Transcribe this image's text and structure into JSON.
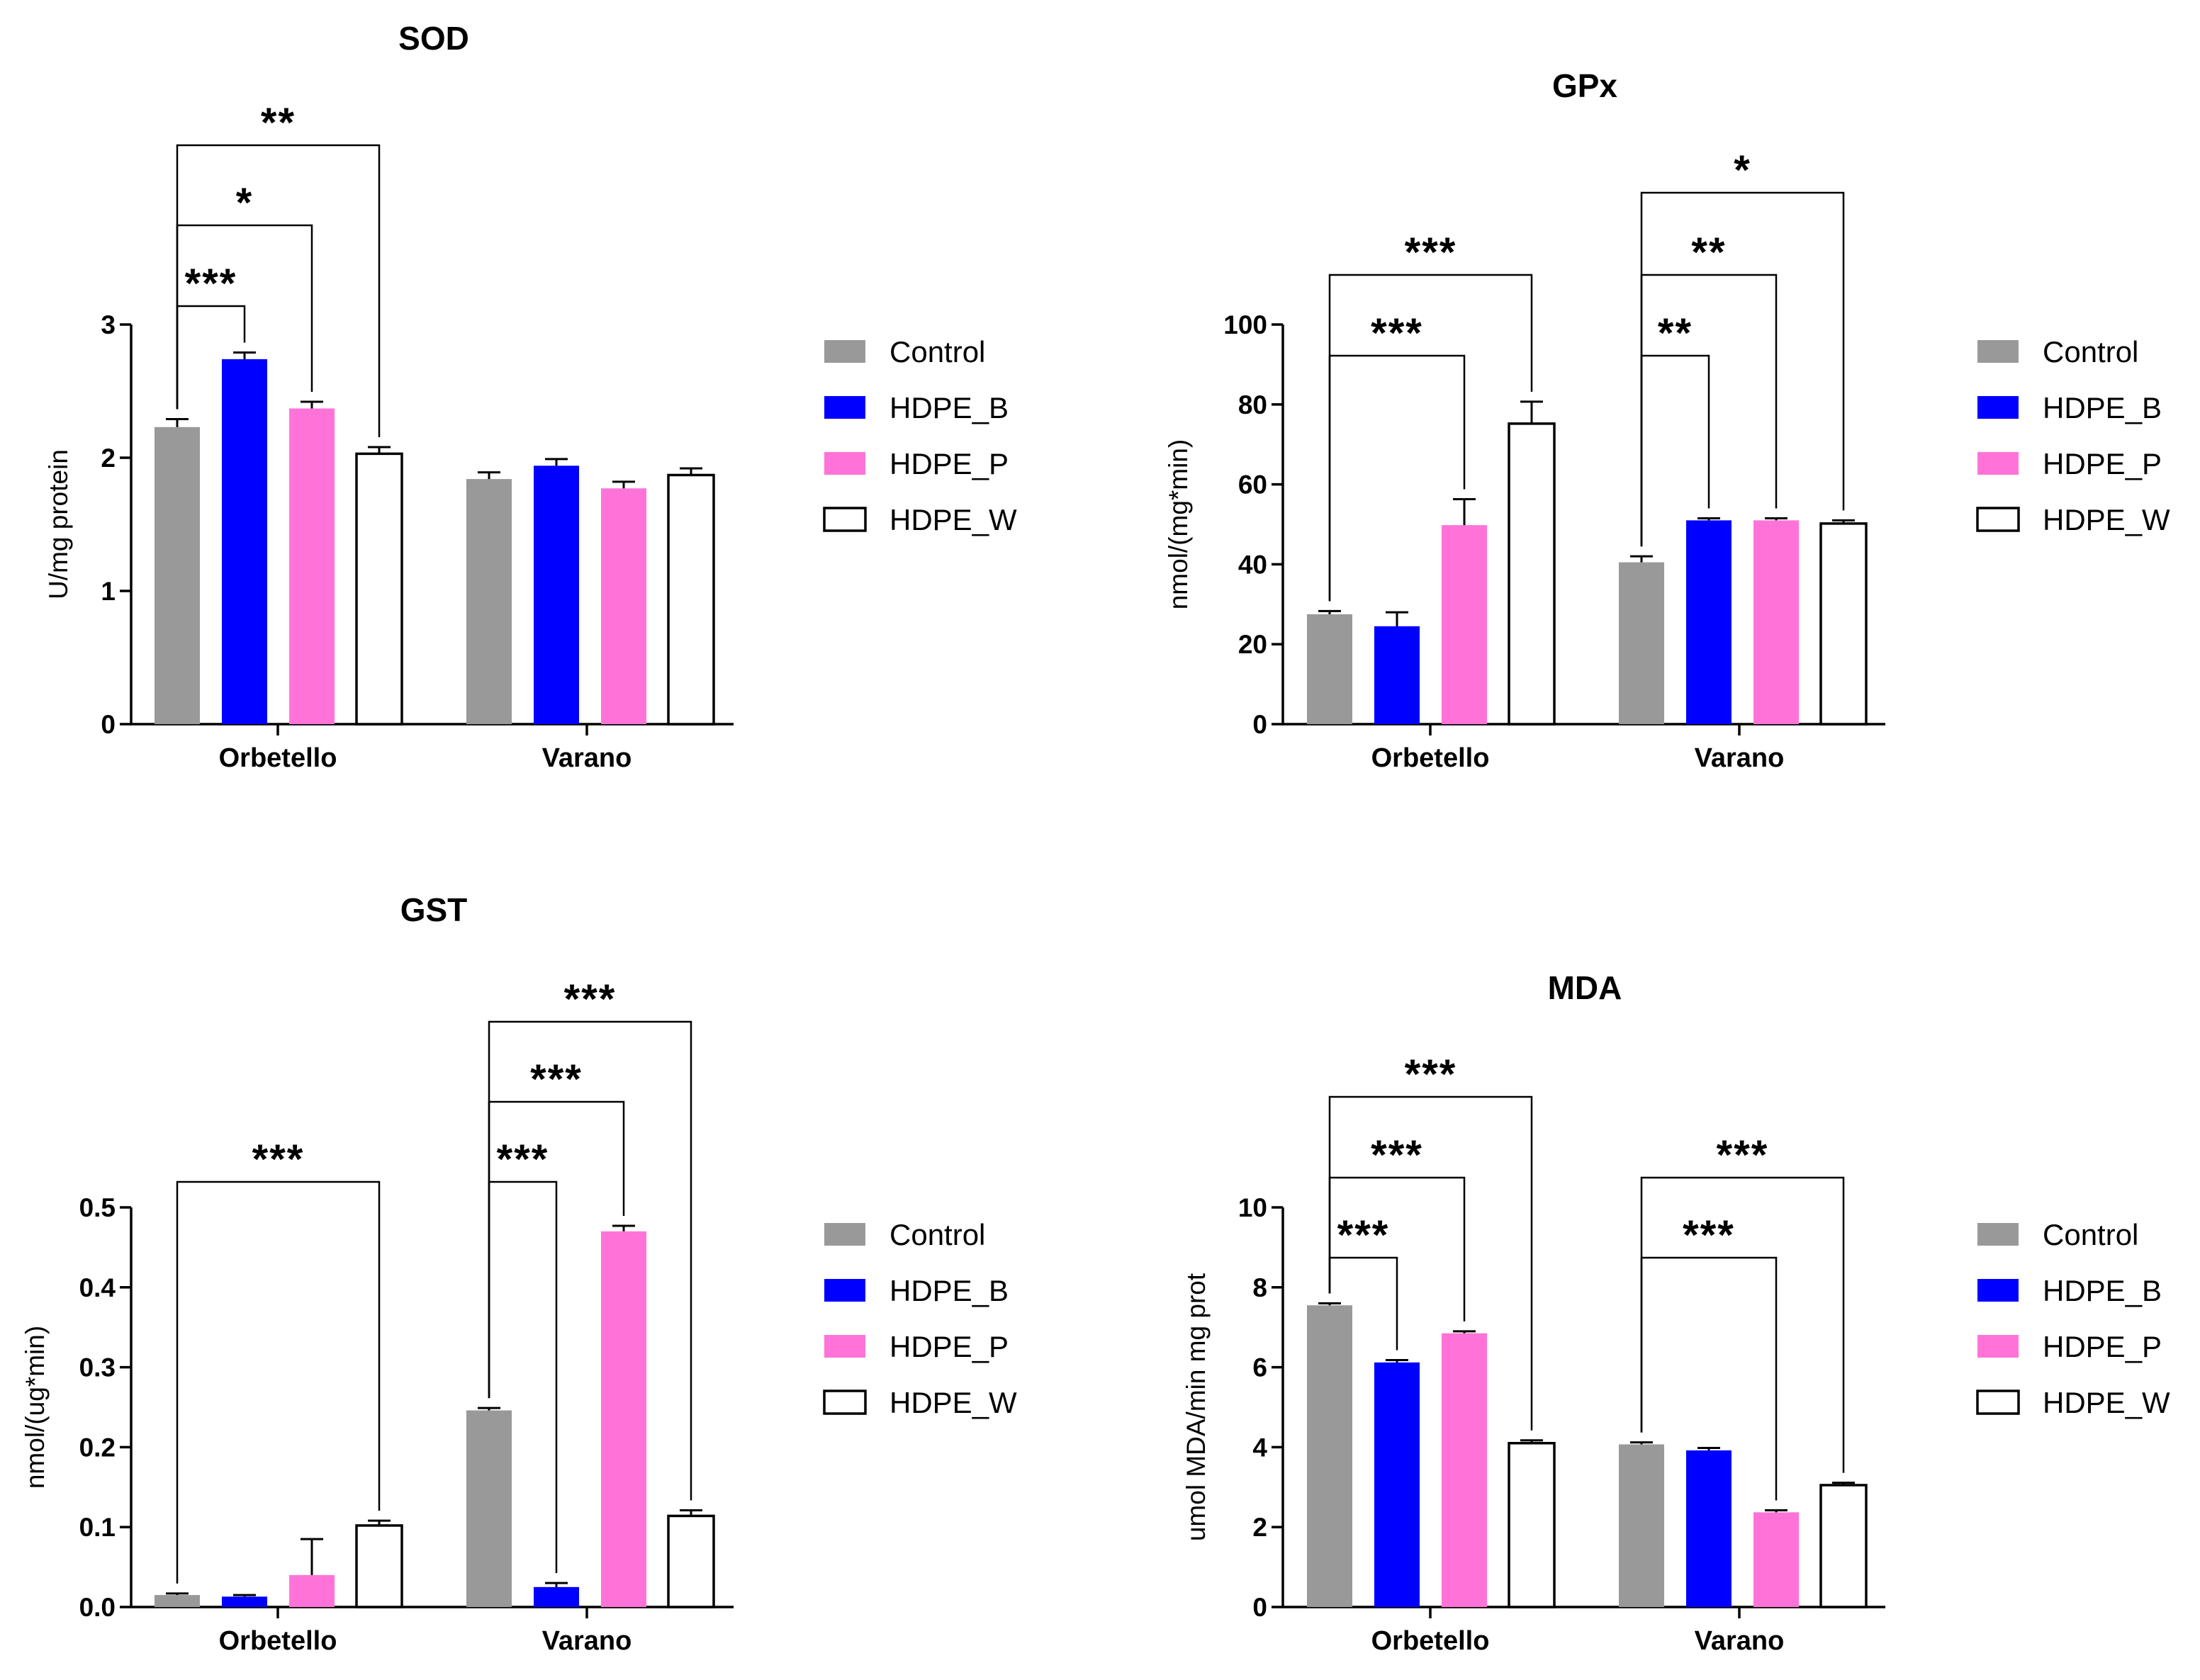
{
  "colors": {
    "Control": "#999999",
    "HDPE_B": "#0000ff",
    "HDPE_P": "#ff73d9",
    "HDPE_W": "#ffffff"
  },
  "chart_data": [
    {
      "type": "bar",
      "title": "SOD",
      "ylabel": "U/mg protein",
      "ylim": [
        0,
        3
      ],
      "yticks": [
        "0",
        "1",
        "2",
        "3"
      ],
      "categories": [
        "Orbetello",
        "Varano"
      ],
      "legend": [
        "Control",
        "HDPE_B",
        "HDPE_P",
        "HDPE_W"
      ],
      "series": [
        {
          "name": "Control",
          "values": [
            2.23,
            1.84
          ],
          "errors": [
            0.06,
            0.05
          ]
        },
        {
          "name": "HDPE_B",
          "values": [
            2.74,
            1.94
          ],
          "errors": [
            0.05,
            0.05
          ]
        },
        {
          "name": "HDPE_P",
          "values": [
            2.37,
            1.77
          ],
          "errors": [
            0.05,
            0.05
          ]
        },
        {
          "name": "HDPE_W",
          "values": [
            2.03,
            1.87
          ],
          "errors": [
            0.05,
            0.05
          ]
        }
      ],
      "annotations": [
        {
          "group": 0,
          "from": 0,
          "to": 3,
          "label": "**"
        },
        {
          "group": 0,
          "from": 0,
          "to": 2,
          "label": "*"
        },
        {
          "group": 0,
          "from": 0,
          "to": 1,
          "label": "***"
        }
      ]
    },
    {
      "type": "bar",
      "title": "GPx",
      "ylabel": "nmol/(mg*min)",
      "ylim": [
        0,
        100
      ],
      "yticks": [
        "0",
        "20",
        "40",
        "60",
        "80",
        "100"
      ],
      "categories": [
        "Orbetello",
        "Varano"
      ],
      "legend": [
        "Control",
        "HDPE_B",
        "HDPE_P",
        "HDPE_W"
      ],
      "series": [
        {
          "name": "Control",
          "values": [
            27.5,
            40.5
          ],
          "errors": [
            0.8,
            1.5
          ]
        },
        {
          "name": "HDPE_B",
          "values": [
            24.5,
            51
          ],
          "errors": [
            3.5,
            0.5
          ]
        },
        {
          "name": "HDPE_P",
          "values": [
            49.8,
            51
          ],
          "errors": [
            6.5,
            0.5
          ]
        },
        {
          "name": "HDPE_W",
          "values": [
            75.2,
            50.2
          ],
          "errors": [
            5.5,
            0.8
          ]
        }
      ],
      "annotations": [
        {
          "group": 0,
          "from": 0,
          "to": 3,
          "label": "***"
        },
        {
          "group": 0,
          "from": 0,
          "to": 2,
          "label": "***"
        },
        {
          "group": 1,
          "from": 0,
          "to": 3,
          "label": "*"
        },
        {
          "group": 1,
          "from": 0,
          "to": 2,
          "label": "**"
        },
        {
          "group": 1,
          "from": 0,
          "to": 1,
          "label": "**"
        }
      ]
    },
    {
      "type": "bar",
      "title": "GST",
      "ylabel": "nmol/(ug*min)",
      "ylim": [
        0,
        0.5
      ],
      "yticks": [
        "0.0",
        "0.1",
        "0.2",
        "0.3",
        "0.4",
        "0.5"
      ],
      "categories": [
        "Orbetello",
        "Varano"
      ],
      "legend": [
        "Control",
        "HDPE_B",
        "HDPE_P",
        "HDPE_W"
      ],
      "series": [
        {
          "name": "Control",
          "values": [
            0.015,
            0.246
          ],
          "errors": [
            0.002,
            0.003
          ]
        },
        {
          "name": "HDPE_B",
          "values": [
            0.013,
            0.025
          ],
          "errors": [
            0.002,
            0.005
          ]
        },
        {
          "name": "HDPE_P",
          "values": [
            0.04,
            0.47
          ],
          "errors": [
            0.045,
            0.007
          ]
        },
        {
          "name": "HDPE_W",
          "values": [
            0.102,
            0.114
          ],
          "errors": [
            0.006,
            0.007
          ]
        }
      ],
      "annotations": [
        {
          "group": 0,
          "from": 0,
          "to": 3,
          "label": "***"
        },
        {
          "group": 1,
          "from": 0,
          "to": 3,
          "label": "***"
        },
        {
          "group": 1,
          "from": 0,
          "to": 2,
          "label": "***"
        },
        {
          "group": 1,
          "from": 0,
          "to": 1,
          "label": "***"
        }
      ]
    },
    {
      "type": "bar",
      "title": "MDA",
      "ylabel": "umol MDA/min mg prot",
      "ylim": [
        0,
        10
      ],
      "yticks": [
        "0",
        "2",
        "4",
        "6",
        "8",
        "10"
      ],
      "categories": [
        "Orbetello",
        "Varano"
      ],
      "legend": [
        "Control",
        "HDPE_B",
        "HDPE_P",
        "HDPE_W"
      ],
      "series": [
        {
          "name": "Control",
          "values": [
            7.55,
            4.07
          ],
          "errors": [
            0.05,
            0.05
          ]
        },
        {
          "name": "HDPE_B",
          "values": [
            6.12,
            3.92
          ],
          "errors": [
            0.06,
            0.06
          ]
        },
        {
          "name": "HDPE_P",
          "values": [
            6.85,
            2.37
          ],
          "errors": [
            0.05,
            0.05
          ]
        },
        {
          "name": "HDPE_W",
          "values": [
            4.1,
            3.05
          ],
          "errors": [
            0.07,
            0.06
          ]
        }
      ],
      "annotations": [
        {
          "group": 0,
          "from": 0,
          "to": 3,
          "label": "***"
        },
        {
          "group": 0,
          "from": 0,
          "to": 2,
          "label": "***"
        },
        {
          "group": 0,
          "from": 0,
          "to": 1,
          "label": "***"
        },
        {
          "group": 1,
          "from": 0,
          "to": 3,
          "label": "***"
        },
        {
          "group": 1,
          "from": 0,
          "to": 2,
          "label": "***"
        }
      ]
    }
  ]
}
